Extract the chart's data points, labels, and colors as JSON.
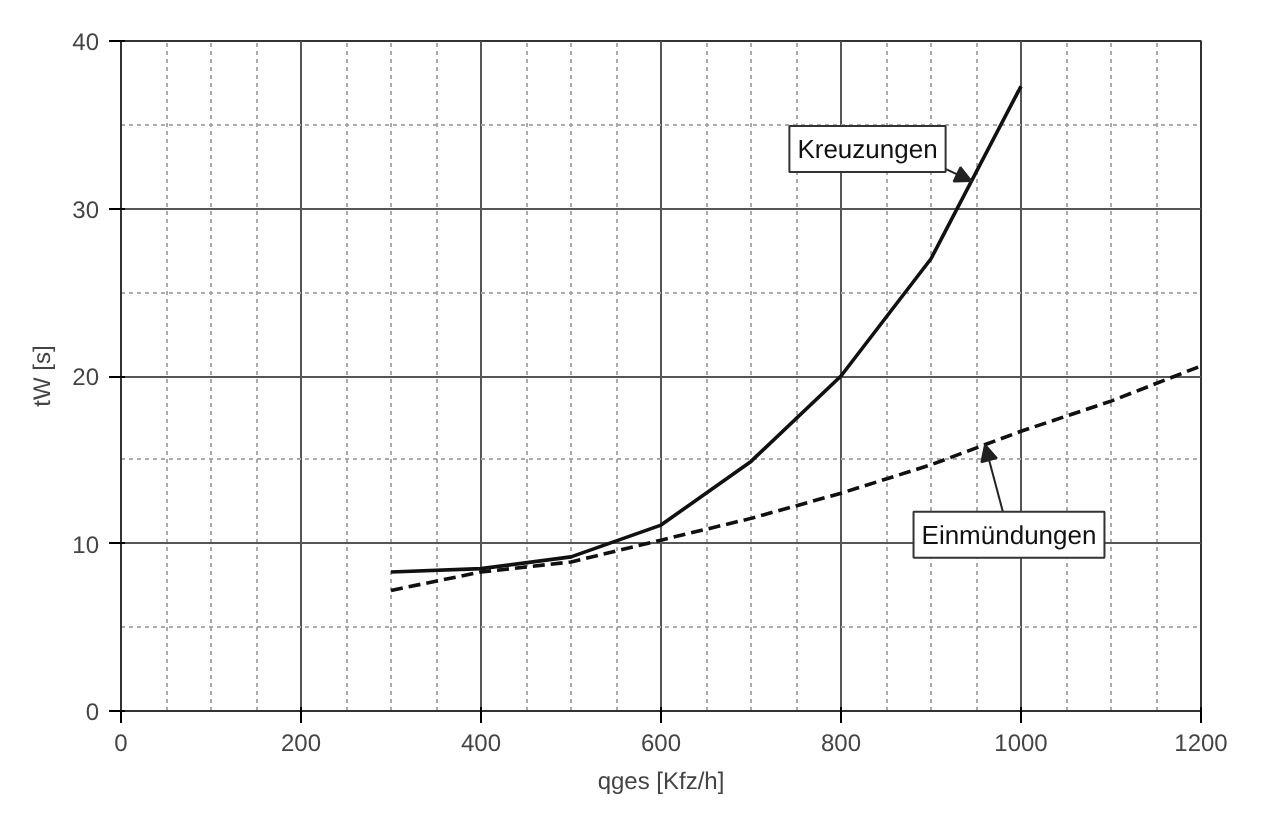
{
  "chart_data": {
    "type": "line",
    "xlabel": "qges [Kfz/h]",
    "ylabel": "tW [s]",
    "xlim": [
      0,
      1200
    ],
    "ylim": [
      0,
      40
    ],
    "xticks": [
      0,
      200,
      400,
      600,
      800,
      1000,
      1200
    ],
    "yticks": [
      0,
      10,
      20,
      30,
      40
    ],
    "grid": true,
    "legend": false,
    "series": [
      {
        "name": "Kreuzungen",
        "color": "#111111",
        "line_style": "solid",
        "x": [
          300,
          400,
          500,
          600,
          700,
          800,
          900,
          1000
        ],
        "values": [
          8.3,
          8.5,
          9.2,
          11.1,
          14.9,
          20,
          27,
          37.3
        ]
      },
      {
        "name": "Einmündungen",
        "color": "#111111",
        "line_style": "dashed",
        "x": [
          300,
          400,
          500,
          600,
          700,
          800,
          900,
          1000,
          1100,
          1200
        ],
        "values": [
          7.2,
          8.3,
          8.9,
          10.2,
          11.5,
          13.0,
          14.7,
          16.7,
          18.5,
          20.6
        ]
      }
    ]
  }
}
